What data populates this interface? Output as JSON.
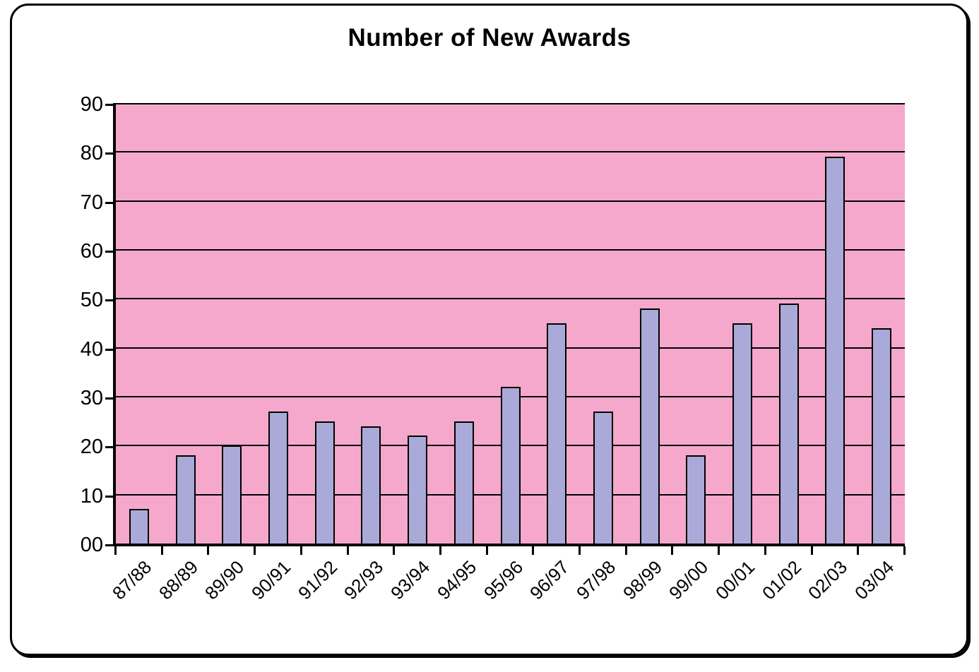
{
  "chart_data": {
    "type": "bar",
    "title": "Number of New Awards",
    "categories": [
      "87/88",
      "88/89",
      "89/90",
      "90/91",
      "91/92",
      "92/93",
      "93/94",
      "94/95",
      "95/96",
      "96/97",
      "97/98",
      "98/99",
      "99/00",
      "00/01",
      "01/02",
      "02/03",
      "03/04"
    ],
    "values": [
      7,
      18,
      20,
      27,
      25,
      24,
      22,
      25,
      32,
      45,
      27,
      48,
      18,
      45,
      49,
      79,
      44
    ],
    "y_tick_labels": [
      "00",
      "10",
      "20",
      "30",
      "40",
      "50",
      "60",
      "70",
      "80",
      "90"
    ],
    "ylim": [
      0,
      90
    ],
    "y_step": 10,
    "xlabel": "",
    "ylabel": "",
    "grid": "horizontal",
    "legend": "none",
    "x_label_rotation_deg": -45,
    "colors": {
      "plot_background": "#F6A8CC",
      "bar_fill": "#AAAAD8",
      "bar_border": "#000000",
      "gridline": "#000000",
      "axis": "#000000",
      "frame_border": "#000000",
      "title_color": "#000000",
      "page_background": "#FFFFFF"
    }
  }
}
